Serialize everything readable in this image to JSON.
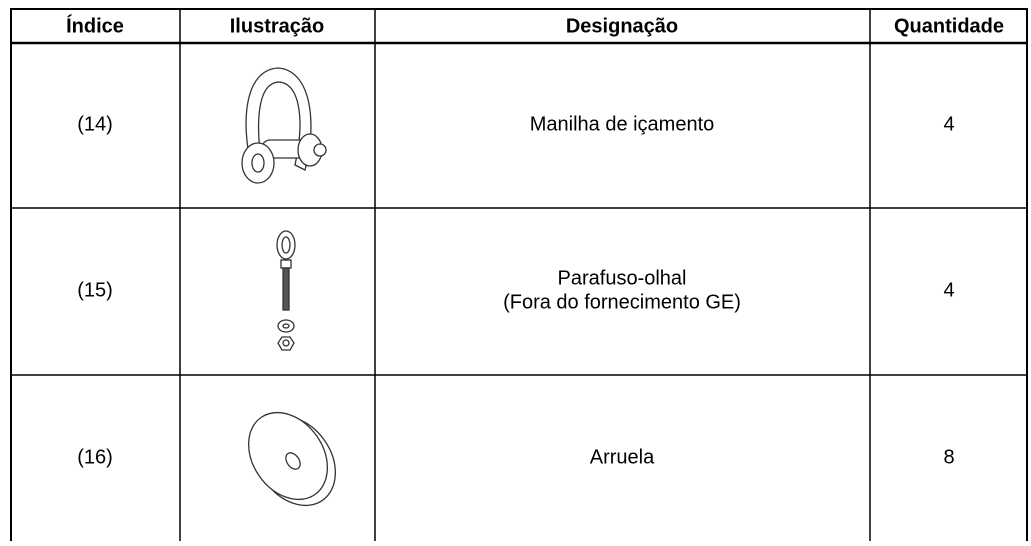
{
  "table": {
    "header": [
      "Índice",
      "Ilustração",
      "Designação",
      "Quantidade"
    ],
    "rows": [
      {
        "index": "(14)",
        "designation": [
          "Manilha de içamento"
        ],
        "quantity": 4
      },
      {
        "index": "(15)",
        "designation": [
          "Parafuso-olhal",
          "(Fora do fornecimento GE)"
        ],
        "quantity": 4
      },
      {
        "index": "(16)",
        "designation": [
          "Arruela"
        ],
        "quantity": 8
      }
    ]
  }
}
